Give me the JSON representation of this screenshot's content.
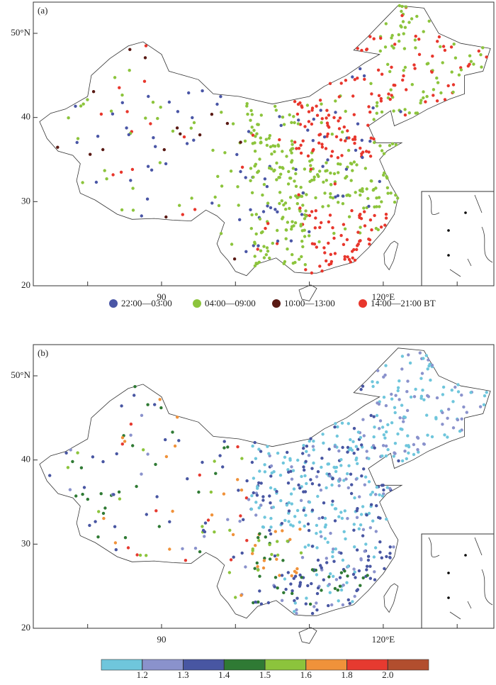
{
  "panels": [
    {
      "label": "(a)",
      "yticks": [
        {
          "value": 50,
          "label": "50°N"
        },
        40,
        30,
        20
      ],
      "xticks": [
        90,
        {
          "value": 120,
          "label": "120°E"
        }
      ],
      "xminor": [
        80,
        100,
        110,
        130
      ],
      "legend": [
        {
          "label": "22∶00—03∶00",
          "color": "#4a56a6"
        },
        {
          "label": "04∶00—09∶00",
          "color": "#8cc43c"
        },
        {
          "label": "10∶00—13∶00",
          "color": "#5a1a14"
        },
        {
          "label": "14∶00—21∶00 BT",
          "color": "#e8362c"
        }
      ]
    },
    {
      "label": "(b)",
      "yticks": [
        {
          "value": 50,
          "label": "50°N"
        },
        40,
        30,
        20
      ],
      "xticks": [
        90,
        {
          "value": 120,
          "label": "120°E"
        }
      ],
      "xminor": [
        80,
        100,
        110,
        130
      ],
      "colorbar": {
        "colors": [
          "#6fc6dc",
          "#8a92cc",
          "#4856a2",
          "#2f7a34",
          "#8cc43c",
          "#f0923a",
          "#e63a30",
          "#b24e2e"
        ],
        "ticks": [
          1.2,
          1.3,
          1.4,
          1.5,
          1.6,
          1.8,
          {
            "value": 2,
            "label": "2.0"
          }
        ]
      }
    }
  ]
}
